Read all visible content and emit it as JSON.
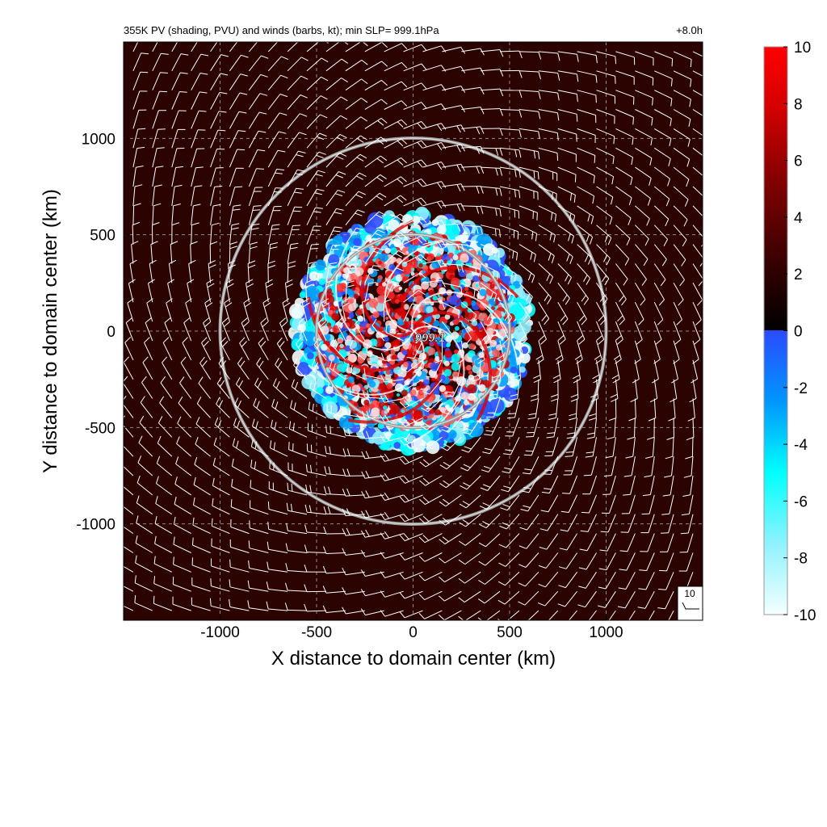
{
  "header": {
    "title": "355K PV (shading, PVU) and winds (barbs, kt); min SLP=  999.1hPa",
    "time": "+8.0h"
  },
  "chart_data": {
    "type": "heatmap",
    "title": "355K PV (shading, PVU) and winds (barbs, kt); min SLP=  999.1hPa",
    "xlabel": "X distance to domain center (km)",
    "ylabel": "Y distance to domain center (km)",
    "xlim": [
      -1500,
      1500
    ],
    "ylim": [
      -1500,
      1500
    ],
    "x_ticks": [
      -1000,
      -500,
      0,
      500,
      1000
    ],
    "y_ticks": [
      1000,
      500,
      0,
      -500,
      -1000
    ],
    "x_tick_labels": [
      "-1000",
      "-500",
      "0",
      "500",
      "1000"
    ],
    "y_tick_labels": [
      "1000",
      "500",
      "0",
      "-500",
      "-1000"
    ],
    "grid": "dashed",
    "range_rings_km": [
      500,
      1000
    ],
    "center": {
      "x": 0,
      "y": 0,
      "marker": "×",
      "label": "999.1"
    },
    "pv_disk_radius_km": 600,
    "colorbar": {
      "min": -10,
      "max": 10,
      "ticks": [
        10,
        8,
        6,
        4,
        2,
        0,
        -2,
        -4,
        -6,
        -8,
        -10
      ],
      "tick_labels": [
        "10",
        "8",
        "6",
        "4",
        "2",
        "0",
        "-2",
        "-4",
        "-6",
        "-8",
        "-10"
      ],
      "positive_colors": [
        "#2a0000",
        "#5a0000",
        "#a00000",
        "#e00000",
        "#ff1a1a"
      ],
      "negative_colors": [
        "#3050ff",
        "#00a0ff",
        "#00ffff",
        "#90f0ff",
        "#f4ffff"
      ]
    },
    "background_pv": 2.3,
    "wind_barb_reference": "10",
    "wind_barb_grid_spacing_km": 100
  }
}
